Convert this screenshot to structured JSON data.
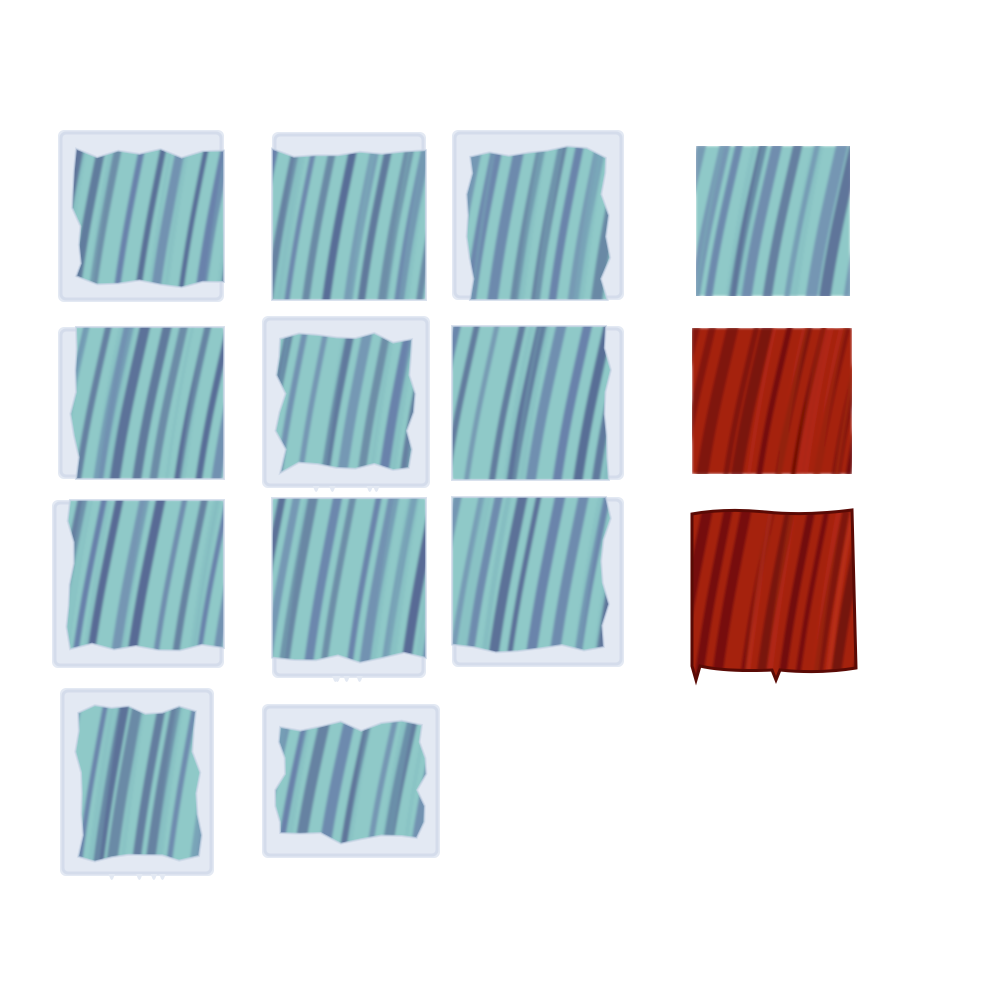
{
  "sheet": {
    "background": "#ffffff",
    "columns": 4,
    "rows": 4
  },
  "palette": {
    "ice_light": "#8fc9c8",
    "ice_mid": "#7fb5bc",
    "ice_stripe": "#6478a6",
    "ice_stripe_dark": "#52608f",
    "snow": "#e3e9f3",
    "snow_shadow": "#c9d4e6",
    "lava_base": "#a5200f",
    "lava_stripe": "#6a0c06",
    "lava_highlight": "#c63a22",
    "lava_edge": "#5a0a05"
  },
  "tiles": [
    {
      "name": "ice-tile-snow-top-left-bottom",
      "material": "ice",
      "snow": [
        "top",
        "left",
        "bottom-left"
      ],
      "drips": false
    },
    {
      "name": "ice-tile-snow-top",
      "material": "ice",
      "snow": [
        "top"
      ],
      "drips": false
    },
    {
      "name": "ice-tile-snow-top-right",
      "material": "ice",
      "snow": [
        "top",
        "right",
        "left-top"
      ],
      "drips": false
    },
    {
      "name": "ice-tile-snow-left",
      "material": "ice",
      "snow": [
        "left"
      ],
      "drips": false
    },
    {
      "name": "ice-tile-snow-all-sides",
      "material": "ice",
      "snow": [
        "top",
        "left",
        "right",
        "bottom"
      ],
      "drips": true
    },
    {
      "name": "ice-tile-snow-right",
      "material": "ice",
      "snow": [
        "right"
      ],
      "drips": false
    },
    {
      "name": "ice-tile-snow-left-bottom",
      "material": "ice",
      "snow": [
        "left",
        "bottom"
      ],
      "drips": false
    },
    {
      "name": "ice-tile-snow-bottom",
      "material": "ice",
      "snow": [
        "bottom"
      ],
      "drips": true
    },
    {
      "name": "ice-tile-snow-right-bottom",
      "material": "ice",
      "snow": [
        "right",
        "bottom"
      ],
      "drips": false
    },
    {
      "name": "ice-tile-snow-top-sides-bottom",
      "material": "ice",
      "snow": [
        "top",
        "left",
        "right",
        "bottom"
      ],
      "drips": true
    },
    {
      "name": "ice-tile-snow-sides",
      "material": "ice",
      "snow": [
        "left",
        "right",
        "top-right",
        "bottom"
      ],
      "drips": false
    },
    {
      "name": "ice-tile-plain",
      "material": "ice",
      "snow": [],
      "drips": false
    },
    {
      "name": "lava-tile-plain",
      "material": "lava",
      "snow": [],
      "drips": false
    },
    {
      "name": "lava-tile-dripping",
      "material": "lava",
      "snow": [
        "edge"
      ],
      "drips": true
    }
  ]
}
